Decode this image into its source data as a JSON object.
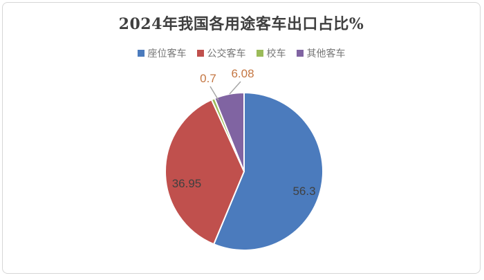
{
  "chart_data": {
    "type": "pie",
    "title": "2024年我国各用途客车出口占比%",
    "categories": [
      "座位客车",
      "公交客车",
      "校车",
      "其他客车"
    ],
    "values": [
      56.3,
      36.95,
      0.7,
      6.08
    ],
    "labels": [
      "56.3",
      "36.95",
      "0.7",
      "6.08"
    ],
    "colors": [
      "#4b7bbd",
      "#c0504d",
      "#9bbb59",
      "#8064a2"
    ],
    "legend_position": "top",
    "start_angle_deg": 0,
    "direction": "clockwise",
    "slice_separator_color": "#ffffff",
    "inside_label_color": "#404040",
    "callout_label_color": "#c47642",
    "leader_line_color": "#a6a6a6",
    "title_color": "#3f3f3f",
    "legend_text_color": "#757575"
  }
}
